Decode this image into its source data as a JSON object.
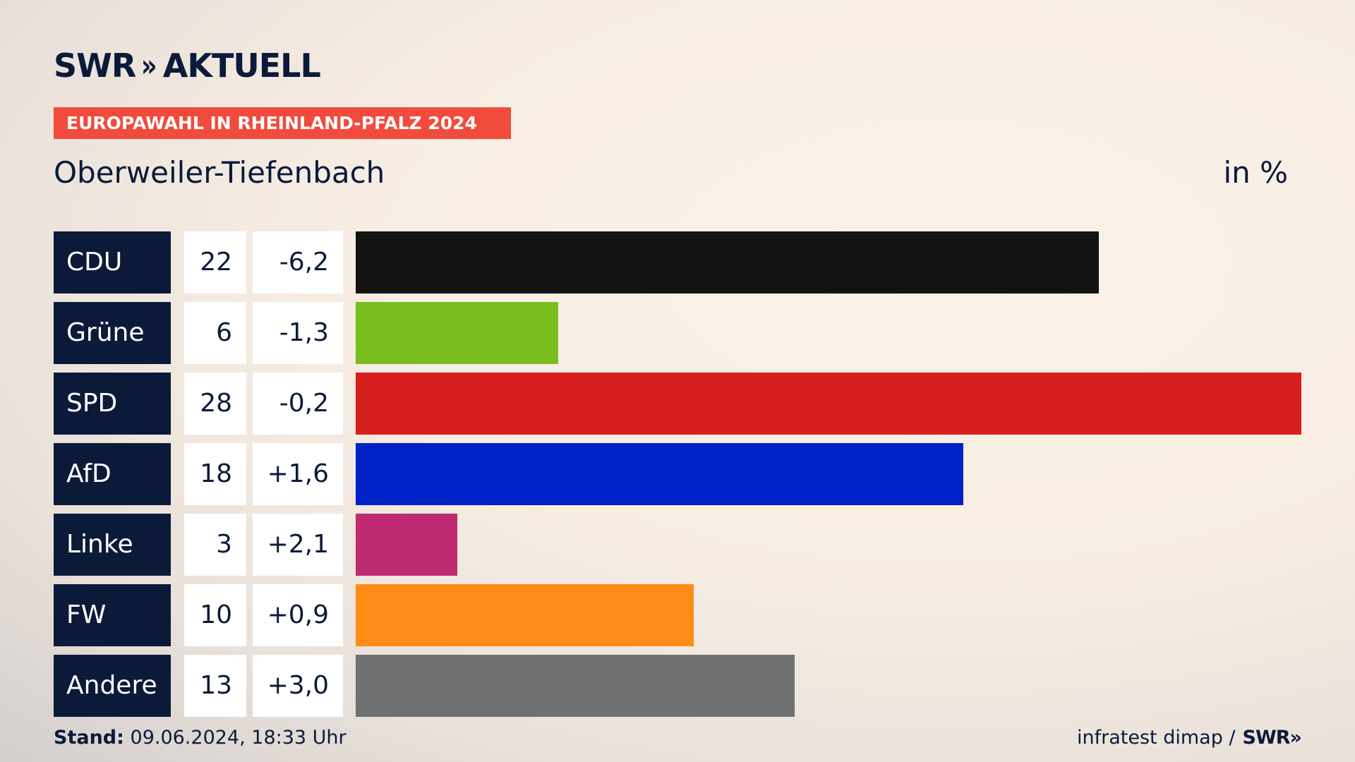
{
  "brand": {
    "logo_left": "SWR",
    "logo_chevrons": "»",
    "logo_right": "AKTUELL"
  },
  "banner": {
    "text": "EUROPAWAHL IN RHEINLAND-PFALZ 2024",
    "color": "#f04b3c"
  },
  "subtitle": "Oberweiler-Tiefenbach",
  "unit": "in %",
  "footer": {
    "stand_label": "Stand:",
    "stand_value": "09.06.2024, 18:33 Uhr",
    "source": "infratest dimap /",
    "source_logo": "SWR»"
  },
  "chart_data": {
    "type": "bar",
    "orientation": "horizontal",
    "categories": [
      "CDU",
      "Grüne",
      "SPD",
      "AfD",
      "Linke",
      "FW",
      "Andere"
    ],
    "values": [
      22,
      6,
      28,
      18,
      3,
      10,
      13
    ],
    "value_labels": [
      "22",
      "6",
      "28",
      "18",
      "3",
      "10",
      "13"
    ],
    "diff_labels": [
      "-6,2",
      "-1,3",
      "-0,2",
      "+1,6",
      "+2,1",
      "+0,9",
      "+3,0"
    ],
    "colors": [
      "#131313",
      "#78be1e",
      "#d71f1f",
      "#0020c8",
      "#bf2b70",
      "#fd8c18",
      "#707172"
    ],
    "xlim": [
      0,
      28
    ],
    "grid": false
  }
}
